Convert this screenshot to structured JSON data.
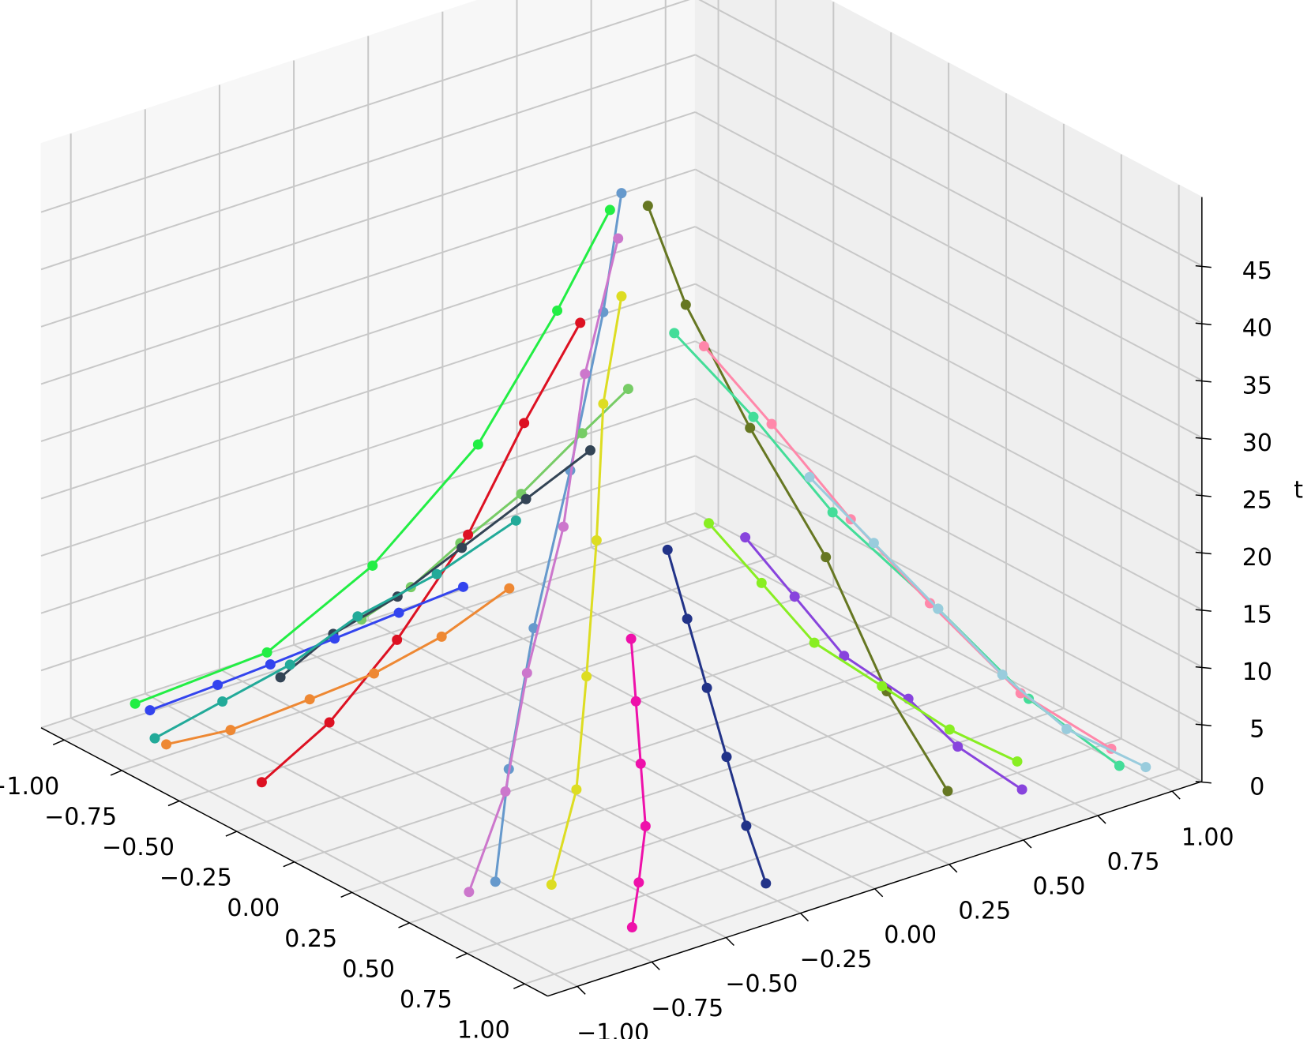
{
  "chart_data": {
    "type": "line3d",
    "zlabel": "t",
    "grid": true,
    "xlim": [
      -1.1,
      1.1
    ],
    "ylim": [
      -1.1,
      1.1
    ],
    "zlim": [
      0,
      51
    ],
    "xticks": [
      {
        "value": -1,
        "label": "−1.00"
      },
      {
        "value": -0.75,
        "label": "−0.75"
      },
      {
        "value": -0.5,
        "label": "−0.50"
      },
      {
        "value": -0.25,
        "label": "−0.25"
      },
      {
        "value": 0,
        "label": "0.00"
      },
      {
        "value": 0.25,
        "label": "0.25"
      },
      {
        "value": 0.5,
        "label": "0.50"
      },
      {
        "value": 0.75,
        "label": "0.75"
      },
      {
        "value": 1,
        "label": "1.00"
      }
    ],
    "yticks": [
      {
        "value": -1,
        "label": "−1.00"
      },
      {
        "value": -0.75,
        "label": "−0.75"
      },
      {
        "value": -0.5,
        "label": "−0.50"
      },
      {
        "value": -0.25,
        "label": "−0.25"
      },
      {
        "value": 0,
        "label": "0.00"
      },
      {
        "value": 0.25,
        "label": "0.25"
      },
      {
        "value": 0.5,
        "label": "0.50"
      },
      {
        "value": 0.75,
        "label": "0.75"
      },
      {
        "value": 1,
        "label": "1.00"
      }
    ],
    "zticks": [
      0,
      5,
      10,
      15,
      20,
      25,
      30,
      35,
      40,
      45
    ],
    "series": [
      {
        "color": "#22ee44",
        "x": [
          -0.05,
          -0.15,
          -0.3,
          -0.5,
          -0.7,
          -0.95
        ],
        "y": [
          0,
          -0.1,
          -0.25,
          -0.45,
          -0.65,
          -0.9
        ],
        "z": [
          47,
          38,
          26,
          15,
          7,
          2
        ]
      },
      {
        "color": "#6699cc",
        "x": [
          0,
          0.05,
          0.1,
          0.2,
          0.35,
          0.55
        ],
        "y": [
          0,
          -0.1,
          -0.25,
          -0.45,
          -0.65,
          -0.85
        ],
        "z": [
          49,
          40,
          28,
          17,
          8,
          2
        ]
      },
      {
        "color": "#667722",
        "x": [
          0.05,
          0.15,
          0.3,
          0.5,
          0.7,
          0.9
        ],
        "y": [
          0.05,
          0.1,
          0.2,
          0.3,
          0.35,
          0.4
        ],
        "z": [
          48,
          40,
          30,
          20,
          10,
          3
        ]
      },
      {
        "color": "#44dd99",
        "x": [
          0.1,
          0.25,
          0.4,
          0.6,
          0.8,
          1.0
        ],
        "y": [
          0.1,
          0.25,
          0.4,
          0.6,
          0.75,
          0.9
        ],
        "z": [
          37,
          30,
          22,
          14,
          7,
          2
        ]
      },
      {
        "color": "#ff88aa",
        "x": [
          0.1,
          0.2,
          0.35,
          0.5,
          0.7,
          0.9
        ],
        "y": [
          0.2,
          0.35,
          0.5,
          0.65,
          0.8,
          0.95
        ],
        "z": [
          35,
          28,
          20,
          13,
          6,
          2
        ]
      },
      {
        "color": "#77cc66",
        "x": [
          -0.1,
          -0.3,
          -0.5,
          -0.7,
          -0.85,
          -1.0
        ],
        "y": [
          0.1,
          0.1,
          0.05,
          0,
          -0.05,
          -0.1
        ],
        "z": [
          30,
          24,
          17,
          11,
          6,
          2
        ]
      },
      {
        "color": "#dd1122",
        "x": [
          -0.05,
          -0.1,
          -0.15,
          -0.2,
          -0.3,
          -0.4
        ],
        "y": [
          -0.1,
          -0.25,
          -0.4,
          -0.6,
          -0.75,
          -0.9
        ],
        "z": [
          38,
          30,
          21,
          13,
          6,
          1
        ]
      },
      {
        "color": "#cc77cc",
        "x": [
          0.05,
          0.1,
          0.2,
          0.3,
          0.4,
          0.5
        ],
        "y": [
          -0.05,
          -0.2,
          -0.35,
          -0.55,
          -0.7,
          -0.9
        ],
        "z": [
          46,
          36,
          25,
          15,
          7,
          1
        ]
      },
      {
        "color": "#dddd22",
        "x": [
          0,
          0.05,
          0.15,
          0.3,
          0.45,
          0.6
        ],
        "y": [
          0,
          -0.1,
          -0.2,
          -0.35,
          -0.5,
          -0.7
        ],
        "z": [
          40,
          32,
          22,
          13,
          6,
          1
        ]
      },
      {
        "color": "#223388",
        "x": [
          0.2,
          0.35,
          0.5,
          0.65,
          0.8,
          0.95
        ],
        "y": [
          0,
          -0.05,
          -0.1,
          -0.15,
          -0.2,
          -0.25
        ],
        "z": [
          20,
          16,
          12,
          8,
          4,
          1
        ]
      },
      {
        "color": "#99ccdd",
        "x": [
          0.3,
          0.45,
          0.6,
          0.75,
          0.9,
          1.05
        ],
        "y": [
          0.4,
          0.5,
          0.6,
          0.7,
          0.8,
          0.95
        ],
        "z": [
          24,
          19,
          14,
          9,
          5,
          2
        ]
      },
      {
        "color": "#334455",
        "x": [
          -0.2,
          -0.35,
          -0.5,
          -0.65,
          -0.8,
          -0.9
        ],
        "y": [
          0.05,
          -0.05,
          -0.15,
          -0.25,
          -0.35,
          -0.45
        ],
        "z": [
          24,
          19,
          14,
          9,
          5,
          1
        ]
      },
      {
        "color": "#3344ee",
        "x": [
          -0.3,
          -0.45,
          -0.6,
          -0.75,
          -0.85,
          -0.95
        ],
        "y": [
          -0.3,
          -0.4,
          -0.5,
          -0.6,
          -0.7,
          -0.85
        ],
        "z": [
          14,
          11,
          8,
          5,
          3,
          1
        ]
      },
      {
        "color": "#8844dd",
        "x": [
          0.15,
          0.3,
          0.45,
          0.6,
          0.75,
          0.9
        ],
        "y": [
          0.3,
          0.35,
          0.4,
          0.5,
          0.55,
          0.65
        ],
        "z": [
          18,
          14,
          10,
          7,
          4,
          1
        ]
      },
      {
        "color": "#ee8833",
        "x": [
          -0.1,
          -0.2,
          -0.3,
          -0.45,
          -0.6,
          -0.75
        ],
        "y": [
          -0.3,
          -0.45,
          -0.6,
          -0.7,
          -0.85,
          -0.95
        ],
        "z": [
          16,
          12,
          9,
          6,
          3,
          1
        ]
      },
      {
        "color": "#ee11aa",
        "x": [
          0.3,
          0.45,
          0.6,
          0.75,
          0.85,
          0.95
        ],
        "y": [
          -0.2,
          -0.3,
          -0.4,
          -0.5,
          -0.6,
          -0.7
        ],
        "z": [
          15,
          12,
          9,
          6,
          3,
          1
        ]
      },
      {
        "color": "#22aa99",
        "x": [
          -0.2,
          -0.35,
          -0.5,
          -0.6,
          -0.7,
          -0.8
        ],
        "y": [
          -0.2,
          -0.35,
          -0.5,
          -0.65,
          -0.8,
          -0.95
        ],
        "z": [
          20,
          15,
          11,
          7,
          4,
          1
        ]
      },
      {
        "color": "#88ee22",
        "x": [
          0.25,
          0.35,
          0.45,
          0.55,
          0.65,
          0.75
        ],
        "y": [
          0.1,
          0.2,
          0.3,
          0.45,
          0.6,
          0.75
        ],
        "z": [
          22,
          17,
          12,
          8,
          4,
          1
        ]
      }
    ]
  }
}
